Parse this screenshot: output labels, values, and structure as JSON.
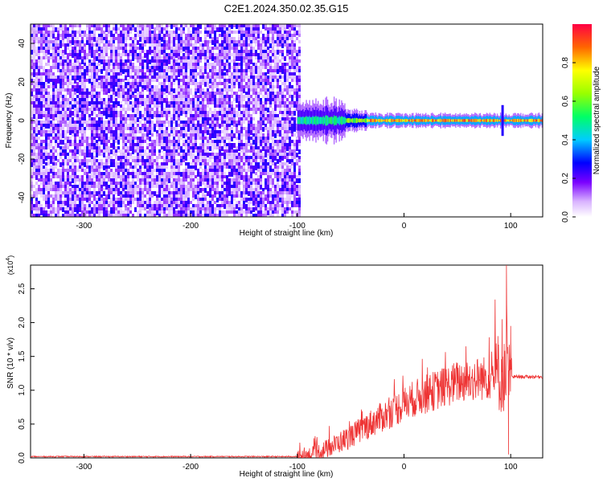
{
  "title": "C2E1.2024.350.02.35.G15",
  "chart_data": [
    {
      "type": "heatmap",
      "xlabel": "Height of straight line (km)",
      "ylabel": "Frequency (Hz)",
      "xlim": [
        -350,
        130
      ],
      "ylim": [
        -50,
        50
      ],
      "xticks": [
        -300,
        -200,
        -100,
        0,
        100
      ],
      "yticks": [
        -40,
        -20,
        0,
        20,
        40
      ],
      "noise_region_x": [
        -350,
        -97
      ],
      "signal_band": {
        "x_range": [
          -100,
          130
        ],
        "center_freq": 0,
        "segments": [
          {
            "x": [
              -100,
              -55
            ],
            "freq_halfwidth": 6,
            "level": 0.55
          },
          {
            "x": [
              -55,
              -35
            ],
            "freq_halfwidth": 3,
            "level": 0.7
          },
          {
            "x": [
              -35,
              130
            ],
            "freq_halfwidth": 2,
            "level": 0.95
          }
        ],
        "feature_x": 92
      },
      "colorbar": {
        "label": "Normalized spectral amplitude",
        "range": [
          0.0,
          1.0
        ],
        "ticks": [
          0.0,
          0.2,
          0.4,
          0.6,
          0.8
        ],
        "tick_labels": [
          "0.0",
          "0.2",
          "0.4",
          "0.6",
          "0.8"
        ]
      }
    },
    {
      "type": "line",
      "xlabel": "Height of straight line (km)",
      "ylabel": "SNR (10 * v/v)",
      "scale_label": "(x10",
      "scale_exp": "4",
      "scale_close": ")",
      "xlim": [
        -350,
        130
      ],
      "ylim": [
        0,
        2.85
      ],
      "xticks": [
        -300,
        -200,
        -100,
        0,
        100
      ],
      "yticks": [
        0.0,
        0.5,
        1.0,
        1.5,
        2.0,
        2.5
      ],
      "ytick_labels": [
        "0.0",
        "0.5",
        "1.0",
        "1.5",
        "2.0",
        "2.5"
      ],
      "color": "#ee3333",
      "envelope": [
        {
          "x": -350,
          "y": 0.02
        },
        {
          "x": -100,
          "y": 0.02
        },
        {
          "x": -85,
          "y": 0.05
        },
        {
          "x": -70,
          "y": 0.15
        },
        {
          "x": -50,
          "y": 0.32
        },
        {
          "x": -30,
          "y": 0.52
        },
        {
          "x": -10,
          "y": 0.7
        },
        {
          "x": 10,
          "y": 0.88
        },
        {
          "x": 30,
          "y": 1.0
        },
        {
          "x": 50,
          "y": 1.12
        },
        {
          "x": 70,
          "y": 1.17
        },
        {
          "x": 85,
          "y": 1.2
        },
        {
          "x": 100,
          "y": 1.2
        },
        {
          "x": 130,
          "y": 1.2
        }
      ],
      "spikes": [
        {
          "x": 96,
          "y": 2.85
        },
        {
          "x": 92,
          "y": 2.05
        },
        {
          "x": 88,
          "y": 1.8
        },
        {
          "x": 100,
          "y": 1.95
        },
        {
          "x": 98,
          "y": 0.05
        }
      ]
    }
  ]
}
